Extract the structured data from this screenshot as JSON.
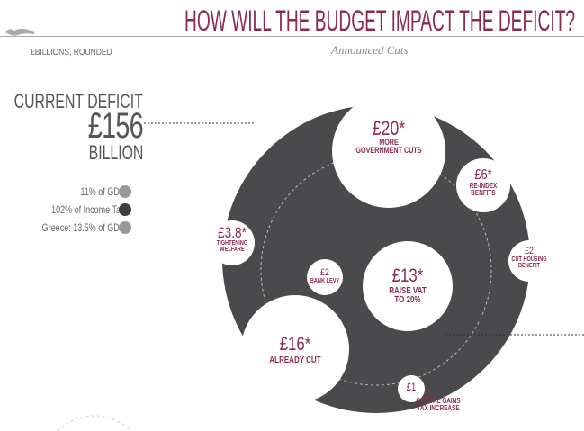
{
  "header": {
    "title": "HOW WILL THE BUDGET IMPACT THE DEFICIT?",
    "units": "£BILLIONS, ROUNDED",
    "subtitle": "Announced Cuts"
  },
  "deficit": {
    "label": "CURRENT DEFICIT",
    "value": "£156",
    "unit": "BILLION"
  },
  "legend": [
    {
      "label": "11% of GDP",
      "color": "#999999"
    },
    {
      "label": "102% of Income Tax",
      "color": "#3d3d3f"
    },
    {
      "label": "Greece: 13.5% of GDP",
      "color": "#999999"
    }
  ],
  "colors": {
    "accent": "#8a2a4c",
    "dark": "#4a4a4c"
  },
  "bubbles": [
    {
      "value": "£20*",
      "label": "MORE",
      "label2": "GOVERNMENT CUTS"
    },
    {
      "value": "£6*",
      "label": "RE-INDEX",
      "label2": "BENFITS"
    },
    {
      "value": "£3.8*",
      "label": "TIGHTENING",
      "label2": "WELFARE"
    },
    {
      "value": "£2",
      "label": "BANK LEVY"
    },
    {
      "value": "£13*",
      "label": "RAISE VAT",
      "label2": "TO 20%"
    },
    {
      "value": "£2",
      "label": "CUT HOUSING",
      "label2": "BENEFIT"
    },
    {
      "value": "£16*",
      "label": "ALREADY CUT"
    },
    {
      "value": "£1",
      "label": "CAPITAL GAINS",
      "label2": "TAX INCREASE"
    }
  ]
}
